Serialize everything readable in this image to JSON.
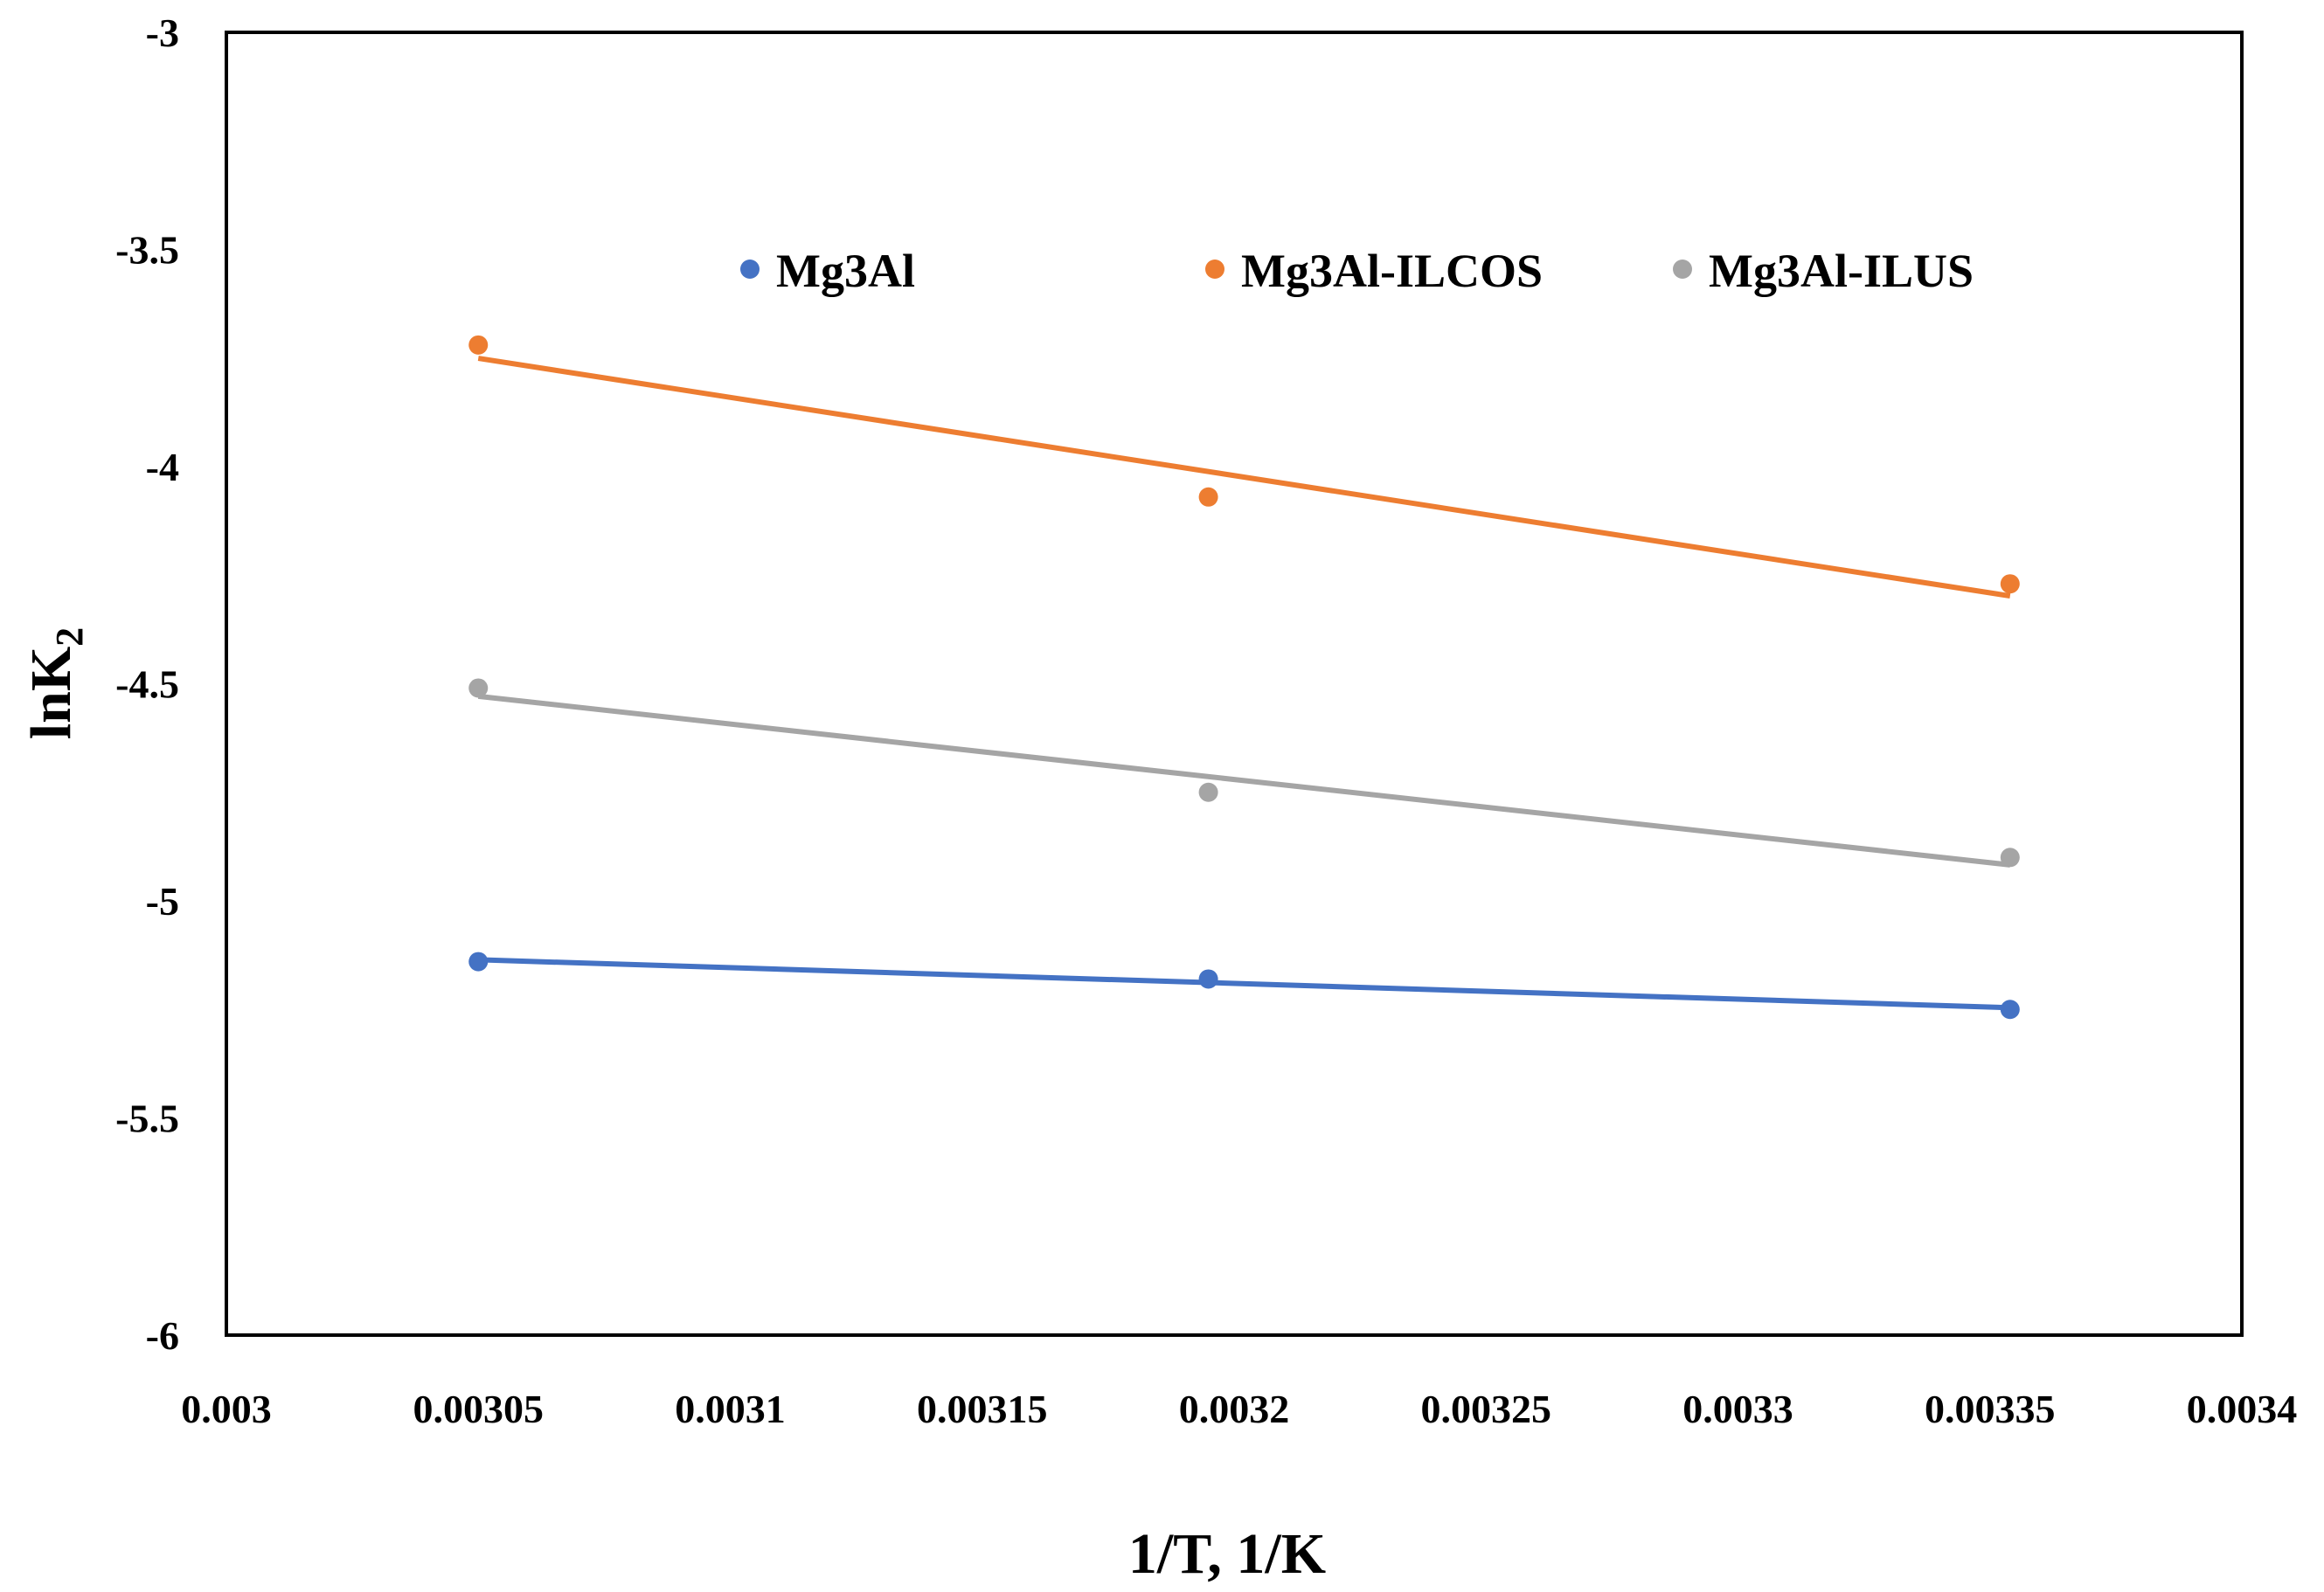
{
  "chart_data": {
    "type": "scatter",
    "title": "",
    "xlabel": "1/T, 1/K",
    "ylabel": {
      "main": "lnK",
      "subscript": "2"
    },
    "xlim": [
      0.003,
      0.0034
    ],
    "ylim": [
      -6,
      -3
    ],
    "x_ticks": [
      "0.003",
      "0.00305",
      "0.0031",
      "0.00315",
      "0.0032",
      "0.00325",
      "0.0033",
      "0.00335",
      "0.0034"
    ],
    "y_ticks": [
      "-3",
      "-3.5",
      "-4",
      "-4.5",
      "-5",
      "-5.5",
      "-6"
    ],
    "grid": false,
    "legend_position": "top-center",
    "trendline": "linear",
    "series": [
      {
        "name": "Mg3Al",
        "color": "#4472C4",
        "x": [
          0.00305,
          0.0031949,
          0.003354
        ],
        "y": [
          -5.14,
          -5.18,
          -5.25
        ]
      },
      {
        "name": "Mg3Al-ILCOS",
        "color": "#ED7D31",
        "x": [
          0.00305,
          0.0031949,
          0.003354
        ],
        "y": [
          -3.72,
          -4.07,
          -4.27
        ]
      },
      {
        "name": "Mg3Al-ILUS",
        "color": "#A5A5A5",
        "x": [
          0.00305,
          0.0031949,
          0.003354
        ],
        "y": [
          -4.51,
          -4.75,
          -4.9
        ]
      }
    ]
  }
}
